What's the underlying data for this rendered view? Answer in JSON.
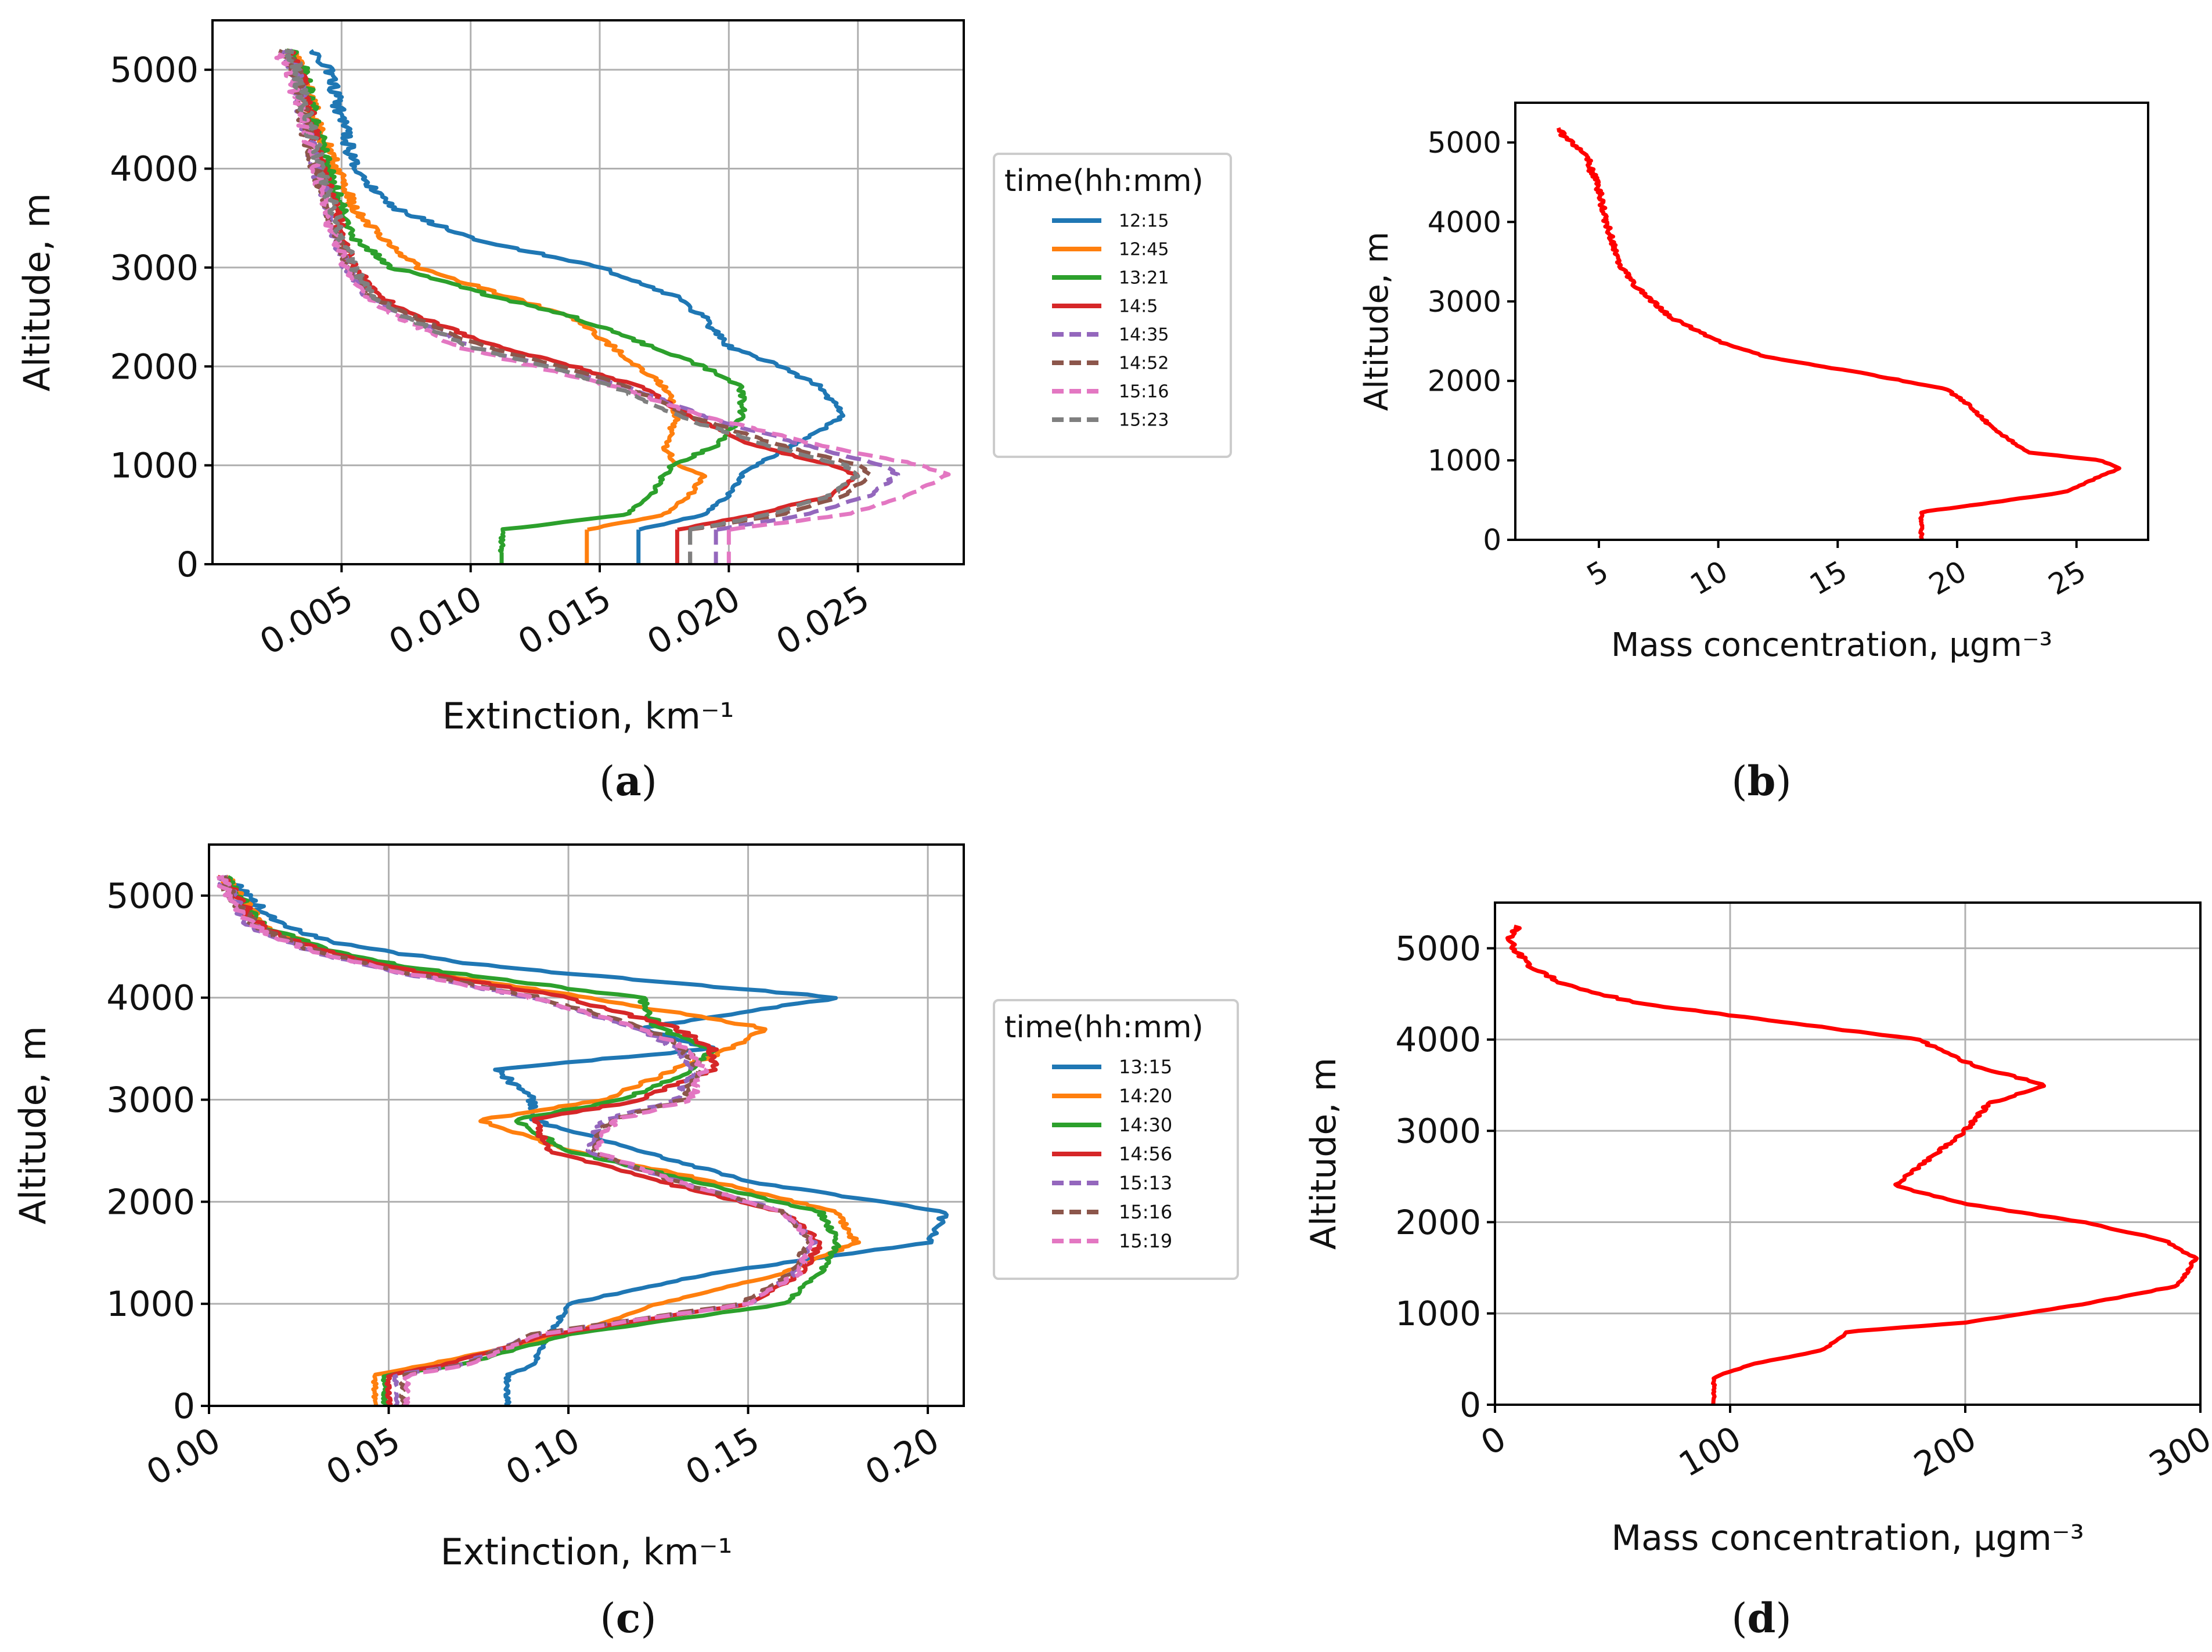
{
  "figure": {
    "panels": [
      {
        "id": "a",
        "caption": "a",
        "legend_title": "time(hh:mm)"
      },
      {
        "id": "b",
        "caption": "b"
      },
      {
        "id": "c",
        "caption": "c",
        "legend_title": "time(hh:mm)"
      },
      {
        "id": "d",
        "caption": "d"
      }
    ]
  },
  "chart_data": [
    {
      "type": "line",
      "panel": "a",
      "xlabel": "Extinction, km⁻¹",
      "ylabel": "Altitude, m",
      "xlim": [
        0.0,
        0.0291
      ],
      "ylim": [
        0,
        5500
      ],
      "xticks": [
        0.005,
        0.01,
        0.015,
        0.02,
        0.025
      ],
      "xtick_labels": [
        "0.005",
        "0.010",
        "0.015",
        "0.020",
        "0.025"
      ],
      "yticks": [
        0,
        1000,
        2000,
        3000,
        4000,
        5000
      ],
      "ytick_labels": [
        "0",
        "1000",
        "2000",
        "3000",
        "4000",
        "5000"
      ],
      "grid": true,
      "legend_placement": "outside-right",
      "altitude": [
        120,
        350,
        500,
        700,
        900,
        1000,
        1200,
        1500,
        1800,
        2000,
        2200,
        2500,
        2700,
        3000,
        3300,
        3600,
        4000,
        4500,
        5000,
        5200
      ],
      "series": [
        {
          "name": "12:15",
          "color": "#1f77b4",
          "dash": "solid",
          "values": [
            null,
            0.0165,
            0.019,
            0.02,
            0.0205,
            0.021,
            0.0225,
            0.0245,
            0.0235,
            0.022,
            0.02,
            0.019,
            0.018,
            0.015,
            0.01,
            0.007,
            0.0055,
            0.005,
            0.0045,
            0.004
          ]
        },
        {
          "name": "12:45",
          "color": "#ff7f0e",
          "dash": "solid",
          "values": [
            null,
            0.0145,
            0.0175,
            0.0185,
            0.019,
            0.018,
            0.0175,
            0.018,
            0.0175,
            0.0165,
            0.0155,
            0.014,
            0.0115,
            0.008,
            0.0065,
            0.0055,
            0.0048,
            0.004,
            0.0035,
            0.003
          ]
        },
        {
          "name": "13:21",
          "color": "#2ca02c",
          "dash": "solid",
          "values": [
            0.0112,
            0.0112,
            0.016,
            0.017,
            0.0175,
            0.0178,
            0.0195,
            0.0205,
            0.0205,
            0.019,
            0.017,
            0.014,
            0.011,
            0.007,
            0.0055,
            0.005,
            0.0045,
            0.004,
            0.0035,
            0.003
          ]
        },
        {
          "name": "14:5",
          "color": "#d62728",
          "dash": "solid",
          "values": [
            null,
            0.018,
            0.021,
            0.024,
            0.025,
            0.024,
            0.021,
            0.0185,
            0.0165,
            0.014,
            0.011,
            0.008,
            0.0065,
            0.0055,
            0.005,
            0.0048,
            0.0042,
            0.0038,
            0.0033,
            0.003
          ]
        },
        {
          "name": "14:35",
          "color": "#9467bd",
          "dash": "dashed",
          "values": [
            null,
            0.0195,
            0.023,
            0.0255,
            0.0265,
            0.026,
            0.023,
            0.019,
            0.016,
            0.013,
            0.01,
            0.0075,
            0.006,
            0.0052,
            0.0048,
            0.0045,
            0.004,
            0.0035,
            0.0032,
            0.0028
          ]
        },
        {
          "name": "14:52",
          "color": "#8c564b",
          "dash": "dashed",
          "values": [
            null,
            0.0185,
            0.022,
            0.0245,
            0.0255,
            0.025,
            0.022,
            0.0185,
            0.016,
            0.0135,
            0.0105,
            0.0078,
            0.0062,
            0.0053,
            0.0048,
            0.0045,
            0.004,
            0.0035,
            0.0032,
            0.0028
          ]
        },
        {
          "name": "15:16",
          "color": "#e377c2",
          "dash": "dashed",
          "values": [
            null,
            0.02,
            0.0245,
            0.027,
            0.0285,
            0.0275,
            0.0235,
            0.019,
            0.0155,
            0.0125,
            0.0095,
            0.0072,
            0.006,
            0.0052,
            0.0047,
            0.0044,
            0.004,
            0.0035,
            0.003,
            0.0025
          ]
        },
        {
          "name": "15:23",
          "color": "#7f7f7f",
          "dash": "dashed",
          "values": [
            null,
            0.0185,
            0.0215,
            0.024,
            0.025,
            0.0245,
            0.0215,
            0.018,
            0.0155,
            0.013,
            0.01,
            0.0075,
            0.0062,
            0.0055,
            0.005,
            0.0047,
            0.0042,
            0.0037,
            0.0033,
            0.003
          ]
        }
      ]
    },
    {
      "type": "line",
      "panel": "b",
      "xlabel": "Mass concentration, μgm⁻³",
      "ylabel": "Altitude, m",
      "xlim": [
        1.5,
        28
      ],
      "ylim": [
        0,
        5500
      ],
      "xticks": [
        5,
        10,
        15,
        20,
        25
      ],
      "xtick_labels": [
        "5",
        "10",
        "15",
        "20",
        "25"
      ],
      "yticks": [
        0,
        1000,
        2000,
        3000,
        4000,
        5000
      ],
      "ytick_labels": [
        "0",
        "1000",
        "2000",
        "3000",
        "4000",
        "5000"
      ],
      "grid": false,
      "series": [
        {
          "name": "mass",
          "color": "#ff0000",
          "x": [
            18.5,
            18.5,
            21.0,
            24.5,
            26.0,
            26.8,
            26.0,
            23.0,
            21.5,
            20.5,
            19.5,
            16.0,
            12.0,
            10.0,
            8.0,
            6.5,
            5.8,
            5.5,
            5.2,
            5.0,
            4.5,
            3.5,
            3.2
          ],
          "y": [
            0,
            350,
            450,
            600,
            800,
            900,
            1000,
            1100,
            1400,
            1700,
            1900,
            2100,
            2300,
            2500,
            2800,
            3200,
            3500,
            3800,
            4100,
            4400,
            4800,
            5100,
            5200
          ]
        }
      ]
    },
    {
      "type": "line",
      "panel": "c",
      "xlabel": "Extinction, km⁻¹",
      "ylabel": "Altitude, m",
      "xlim": [
        0.0,
        0.21
      ],
      "ylim": [
        0,
        5500
      ],
      "xticks": [
        0.0,
        0.05,
        0.1,
        0.15,
        0.2
      ],
      "xtick_labels": [
        "0.00",
        "0.05",
        "0.10",
        "0.15",
        "0.20"
      ],
      "yticks": [
        0,
        1000,
        2000,
        3000,
        4000,
        5000
      ],
      "ytick_labels": [
        "0",
        "1000",
        "2000",
        "3000",
        "4000",
        "5000"
      ],
      "grid": true,
      "legend_placement": "outside-right",
      "altitude": [
        0,
        300,
        400,
        700,
        1000,
        1300,
        1600,
        1900,
        2200,
        2500,
        2800,
        3000,
        3300,
        3500,
        3700,
        4000,
        4300,
        4500,
        4700,
        5000,
        5200
      ],
      "series": [
        {
          "name": "13:15",
          "color": "#1f77b4",
          "dash": "solid",
          "values": [
            0.083,
            0.083,
            0.09,
            0.095,
            0.1,
            0.14,
            0.2,
            0.205,
            0.15,
            0.12,
            0.09,
            0.09,
            0.08,
            0.14,
            0.12,
            0.175,
            0.08,
            0.04,
            0.02,
            0.01,
            0.005
          ]
        },
        {
          "name": "14:20",
          "color": "#ff7f0e",
          "dash": "solid",
          "values": [
            0.046,
            0.046,
            0.06,
            0.1,
            0.125,
            0.16,
            0.18,
            0.175,
            0.14,
            0.1,
            0.075,
            0.11,
            0.13,
            0.145,
            0.155,
            0.105,
            0.05,
            0.03,
            0.015,
            0.008,
            0.004
          ]
        },
        {
          "name": "14:30",
          "color": "#2ca02c",
          "dash": "solid",
          "values": [
            0.049,
            0.049,
            0.07,
            0.1,
            0.16,
            0.17,
            0.175,
            0.17,
            0.135,
            0.1,
            0.085,
            0.115,
            0.135,
            0.14,
            0.125,
            0.12,
            0.055,
            0.03,
            0.015,
            0.008,
            0.004
          ]
        },
        {
          "name": "14:56",
          "color": "#d62728",
          "dash": "solid",
          "values": [
            0.05,
            0.05,
            0.065,
            0.095,
            0.15,
            0.165,
            0.17,
            0.16,
            0.125,
            0.095,
            0.09,
            0.12,
            0.14,
            0.14,
            0.13,
            0.1,
            0.05,
            0.028,
            0.014,
            0.007,
            0.003
          ]
        },
        {
          "name": "15:13",
          "color": "#9467bd",
          "dash": "dashed",
          "values": [
            0.052,
            0.052,
            0.07,
            0.09,
            0.15,
            0.163,
            0.168,
            0.16,
            0.13,
            0.105,
            0.11,
            0.13,
            0.135,
            0.13,
            0.12,
            0.09,
            0.045,
            0.025,
            0.012,
            0.006,
            0.003
          ]
        },
        {
          "name": "15:16",
          "color": "#8c564b",
          "dash": "dashed",
          "values": [
            0.054,
            0.054,
            0.071,
            0.09,
            0.148,
            0.162,
            0.167,
            0.16,
            0.13,
            0.106,
            0.112,
            0.132,
            0.137,
            0.132,
            0.122,
            0.092,
            0.047,
            0.026,
            0.013,
            0.006,
            0.003
          ]
        },
        {
          "name": "15:19",
          "color": "#e377c2",
          "dash": "dashed",
          "values": [
            0.055,
            0.055,
            0.072,
            0.092,
            0.15,
            0.164,
            0.168,
            0.16,
            0.13,
            0.107,
            0.113,
            0.134,
            0.138,
            0.133,
            0.12,
            0.09,
            0.046,
            0.025,
            0.012,
            0.006,
            0.003
          ]
        }
      ]
    },
    {
      "type": "line",
      "panel": "d",
      "xlabel": "Mass concentration, μgm⁻³",
      "ylabel": "Altitude, m",
      "xlim": [
        0,
        300
      ],
      "ylim": [
        0,
        5500
      ],
      "xticks": [
        0,
        100,
        200,
        300
      ],
      "xtick_labels": [
        "0",
        "100",
        "200",
        "300"
      ],
      "yticks": [
        0,
        1000,
        2000,
        3000,
        4000,
        5000
      ],
      "ytick_labels": [
        "0",
        "1000",
        "2000",
        "3000",
        "4000",
        "5000"
      ],
      "grid": true,
      "series": [
        {
          "name": "mass",
          "color": "#ff0000",
          "x": [
            93,
            93,
            110,
            140,
            150,
            200,
            250,
            290,
            298,
            285,
            250,
            200,
            170,
            180,
            200,
            210,
            235,
            205,
            180,
            120,
            60,
            30,
            15,
            5,
            10
          ],
          "y": [
            0,
            300,
            450,
            600,
            800,
            900,
            1100,
            1300,
            1600,
            1800,
            2000,
            2200,
            2400,
            2600,
            3000,
            3300,
            3500,
            3700,
            4000,
            4200,
            4400,
            4600,
            4800,
            5100,
            5250
          ]
        }
      ]
    }
  ]
}
